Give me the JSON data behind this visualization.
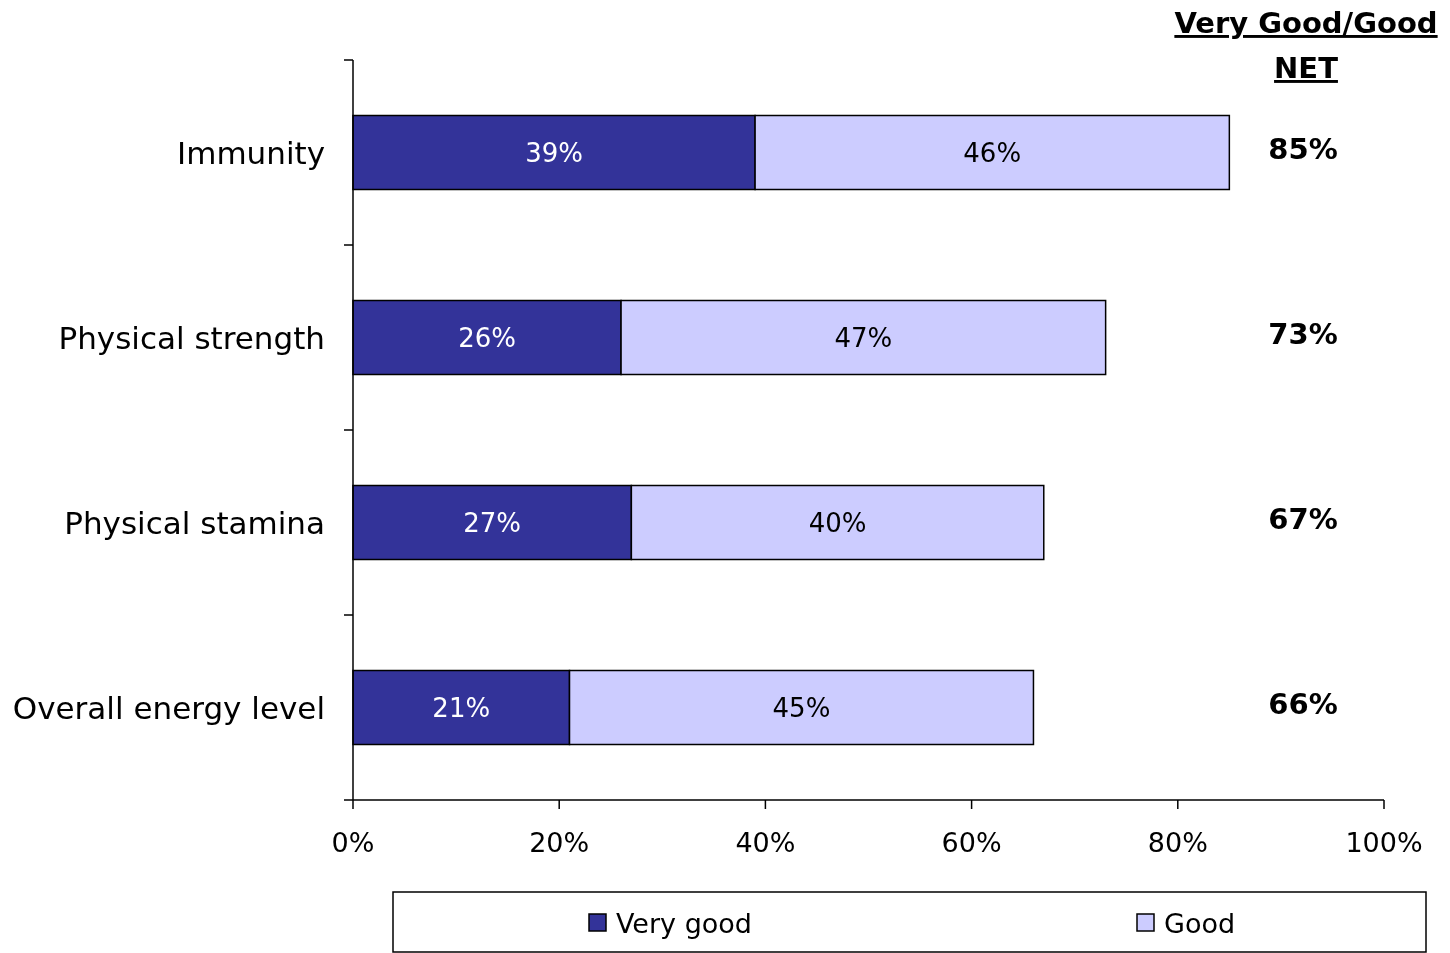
{
  "chart_data": {
    "type": "bar",
    "orientation": "horizontal",
    "stacked": true,
    "categories": [
      "Immunity",
      "Physical strength",
      "Physical stamina",
      "Overall energy level"
    ],
    "series": [
      {
        "name": "Very good",
        "color": "#333399",
        "values": [
          39,
          26,
          27,
          21
        ],
        "value_labels": [
          "39%",
          "26%",
          "27%",
          "21%"
        ]
      },
      {
        "name": "Good",
        "color": "#ccccff",
        "values": [
          46,
          47,
          40,
          45
        ],
        "value_labels": [
          "46%",
          "47%",
          "40%",
          "45%"
        ]
      }
    ],
    "annotations": [
      "Very Good/Good NET",
      "85%",
      "73%",
      "67%",
      "66%"
    ],
    "xlim": [
      0,
      100
    ],
    "xticks": [
      {
        "value": 0,
        "label": "0%"
      },
      {
        "value": 20,
        "label": "20%"
      },
      {
        "value": 40,
        "label": "40%"
      },
      {
        "value": 60,
        "label": "60%"
      },
      {
        "value": 80,
        "label": "80%"
      },
      {
        "value": 100,
        "label": "100%"
      }
    ],
    "grid": false,
    "legend": "bottom"
  }
}
